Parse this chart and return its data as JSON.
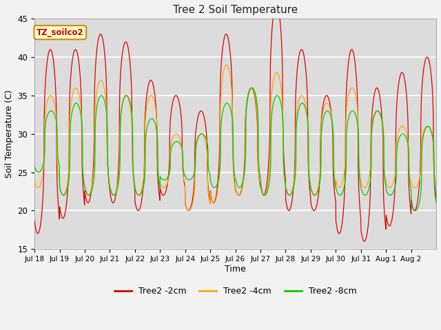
{
  "title": "Tree 2 Soil Temperature",
  "xlabel": "Time",
  "ylabel": "Soil Temperature (C)",
  "ylim": [
    15,
    45
  ],
  "bg_color": "#dcdcdc",
  "series": {
    "Tree2 -2cm": {
      "color": "#dd0000"
    },
    "Tree2 -4cm": {
      "color": "#ffa500"
    },
    "Tree2 -8cm": {
      "color": "#00cc00"
    }
  },
  "xtick_labels": [
    "Jul 18",
    "Jul 19",
    "Jul 20",
    "Jul 21",
    "Jul 22",
    "Jul 23",
    "Jul 24",
    "Jul 25",
    "Jul 26",
    "Jul 27",
    "Jul 28",
    "Jul 29",
    "Jul 30",
    "Jul 31",
    "Aug 1",
    "Aug 2"
  ],
  "ytick_labels": [
    15,
    20,
    25,
    30,
    35,
    40,
    45
  ],
  "grid_color": "#ffffff",
  "annotation_box": {
    "text": "TZ_soilco2",
    "facecolor": "#ffffcc",
    "edgecolor": "#cc8800"
  },
  "n_days": 16,
  "red_peaks": [
    41,
    41,
    43,
    42,
    37,
    35,
    33,
    43,
    36,
    47,
    41,
    35,
    41,
    36,
    38,
    40
  ],
  "red_troughs": [
    17,
    19,
    21,
    21,
    20,
    22,
    20,
    21,
    22,
    22,
    20,
    20,
    17,
    16,
    18,
    20
  ],
  "orange_peaks": [
    35,
    36,
    37,
    35,
    35,
    30,
    30,
    39,
    36,
    38,
    35,
    34,
    36,
    33,
    31,
    31
  ],
  "orange_troughs": [
    23,
    22,
    22,
    22,
    22,
    23,
    20,
    21,
    22,
    22,
    22,
    22,
    23,
    23,
    23,
    23
  ],
  "green_peaks": [
    33,
    34,
    35,
    35,
    32,
    29,
    30,
    34,
    36,
    35,
    34,
    33,
    33,
    33,
    30,
    31
  ],
  "green_troughs": [
    25,
    22,
    22,
    22,
    22,
    24,
    24,
    23,
    23,
    22,
    22,
    22,
    22,
    22,
    22,
    20
  ]
}
